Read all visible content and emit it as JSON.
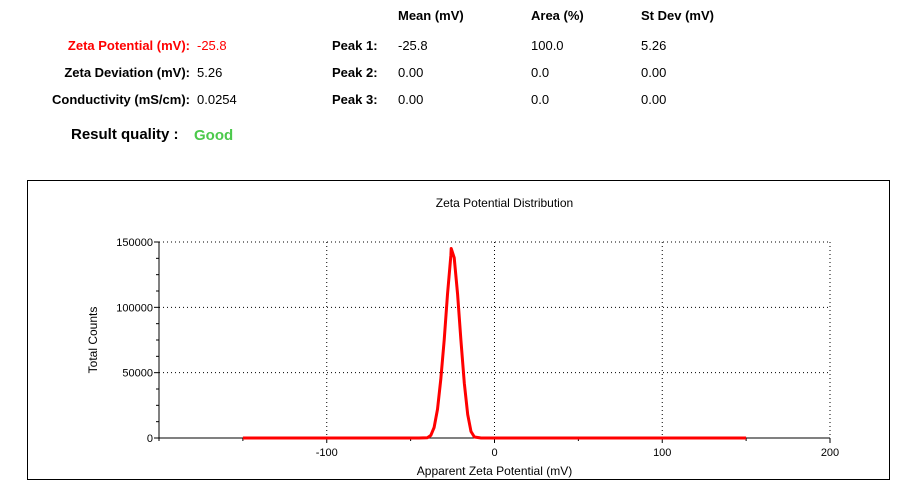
{
  "summary": {
    "zeta_potential": {
      "label": "Zeta Potential (mV):",
      "value": "-25.8",
      "color": "#ff0000"
    },
    "zeta_deviation": {
      "label": "Zeta Deviation (mV):",
      "value": "5.26"
    },
    "conductivity": {
      "label": "Conductivity (mS/cm):",
      "value": "0.0254"
    },
    "result_quality": {
      "label": "Result quality :",
      "value": "Good",
      "color": "#4cc94c"
    }
  },
  "peaks_table": {
    "headers": [
      "Mean (mV)",
      "Area (%)",
      "St Dev (mV)"
    ],
    "rows": [
      {
        "label": "Peak 1:",
        "mean": "-25.8",
        "area": "100.0",
        "stdev": "5.26"
      },
      {
        "label": "Peak 2:",
        "mean": "0.00",
        "area": "0.0",
        "stdev": "0.00"
      },
      {
        "label": "Peak 3:",
        "mean": "0.00",
        "area": "0.0",
        "stdev": "0.00"
      }
    ]
  },
  "chart_data": {
    "type": "line",
    "title": "Zeta Potential Distribution",
    "xlabel": "Apparent Zeta Potential (mV)",
    "ylabel": "Total Counts",
    "xlim": [
      -200,
      200
    ],
    "ylim": [
      0,
      150000
    ],
    "xticks": [
      -100,
      0,
      100,
      200
    ],
    "yticks": [
      0,
      50000,
      100000,
      150000
    ],
    "grid": true,
    "series": [
      {
        "color": "#ff0000",
        "x": [
          -150,
          -45,
          -40,
          -38,
          -36,
          -34,
          -32,
          -30,
          -28,
          -26,
          -25.8,
          -24,
          -22,
          -20,
          -18,
          -16,
          -14,
          -12,
          -8,
          0,
          150
        ],
        "y": [
          0,
          0,
          200,
          2000,
          8000,
          22000,
          45000,
          75000,
          110000,
          140000,
          145000,
          138000,
          110000,
          75000,
          42000,
          18000,
          5000,
          800,
          0,
          0,
          0
        ]
      }
    ]
  }
}
